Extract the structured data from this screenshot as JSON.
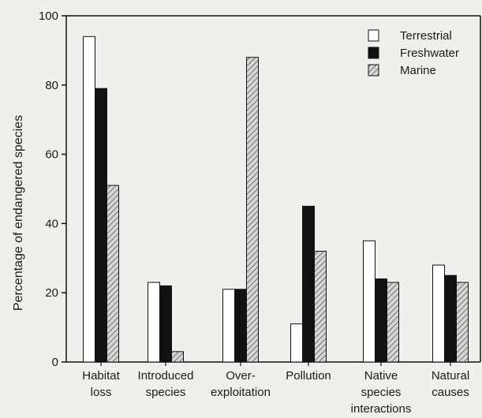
{
  "chart_data": {
    "type": "bar",
    "title": "",
    "xlabel": "",
    "ylabel": "Percentage of endangered species",
    "ylim": [
      0,
      100
    ],
    "yticks": [
      0,
      20,
      40,
      60,
      80,
      100
    ],
    "grid": false,
    "legend_position": "top-right",
    "categories": [
      [
        "Habitat",
        "loss"
      ],
      [
        "Introduced",
        "species"
      ],
      [
        "Over-",
        "exploitation"
      ],
      [
        "Pollution"
      ],
      [
        "Native",
        "species",
        "interactions"
      ],
      [
        "Natural",
        "causes"
      ]
    ],
    "series": [
      {
        "name": "Terrestrial",
        "pattern": "white",
        "values": [
          94,
          23,
          21,
          11,
          35,
          28
        ]
      },
      {
        "name": "Freshwater",
        "pattern": "black",
        "values": [
          79,
          22,
          21,
          45,
          24,
          25
        ]
      },
      {
        "name": "Marine",
        "pattern": "hatched",
        "values": [
          51,
          3,
          88,
          32,
          23,
          23
        ]
      }
    ],
    "colors": {
      "bar_fill_white": "#ffffff",
      "bar_fill_black": "#111111",
      "hatch_line": "#555555",
      "hatch_bg": "#d6d6d6",
      "axis": "#111111"
    }
  }
}
